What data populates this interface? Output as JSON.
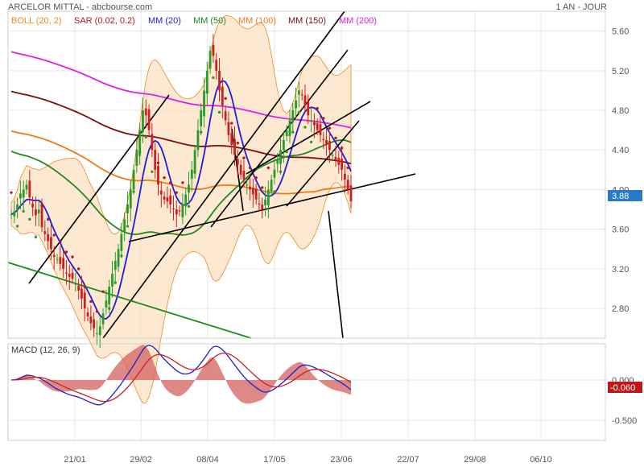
{
  "header": {
    "title": "ARCELOR MITTAL - abcbourse.com",
    "period": "1 AN - JOUR"
  },
  "colors": {
    "boll": "#f08a1c",
    "boll_fill": "#fde4c6",
    "sar": "#c0141e",
    "sar_green": "#2f9a2f",
    "mm20": "#1d1dd6",
    "mm50": "#1f8a1f",
    "mm100": "#f07a12",
    "mm150": "#7a0e0e",
    "mm200": "#e020e0",
    "up_candle": "#2a9a2a",
    "down_candle": "#cc2020",
    "macd": "#2020c8",
    "signal": "#cc2020",
    "hist": "#d46060",
    "badge_blue": "#2979c8",
    "badge_red": "#c01818",
    "trend": "#000000",
    "green_trend": "#1f8a1f"
  },
  "chart_data": [
    {
      "type": "candlestick",
      "x_ticks": [
        "21/01",
        "29/02",
        "08/04",
        "17/05",
        "23/06",
        "22/07",
        "29/08",
        "06/10"
      ],
      "y_ticks": [
        "5.60",
        "5.20",
        "4.80",
        "4.40",
        "4.00",
        "3.60",
        "3.20",
        "2.80"
      ],
      "ylim": [
        2.5,
        5.8
      ],
      "legend": [
        "BOLL (20, 2)",
        "SAR (0.02, 0.2)",
        "MM (20)",
        "MM (50)",
        "MM (100)",
        "MM (150)",
        "MM (200)"
      ],
      "last_price_label": "3.88",
      "close": [
        3.75,
        3.78,
        3.85,
        3.96,
        4.0,
        4.05,
        3.92,
        3.82,
        3.74,
        3.8,
        3.62,
        3.55,
        3.48,
        3.4,
        3.32,
        3.3,
        3.25,
        3.2,
        3.15,
        3.12,
        3.1,
        3.05,
        2.98,
        2.9,
        2.8,
        2.72,
        2.65,
        2.6,
        2.55,
        2.62,
        2.75,
        2.88,
        3.02,
        3.15,
        3.28,
        3.4,
        3.55,
        3.7,
        3.85,
        4.0,
        4.2,
        4.4,
        4.6,
        4.8,
        4.75,
        4.6,
        4.4,
        4.2,
        4.05,
        3.95,
        3.9,
        3.88,
        3.85,
        3.8,
        3.75,
        3.78,
        3.85,
        3.95,
        4.05,
        4.2,
        4.4,
        4.6,
        4.8,
        5.0,
        5.2,
        5.4,
        5.35,
        5.2,
        5.0,
        4.85,
        4.7,
        4.55,
        4.45,
        4.35,
        4.25,
        4.15,
        4.1,
        4.05,
        4.0,
        3.95,
        3.9,
        3.85,
        3.8,
        3.9,
        4.0,
        4.1,
        4.2,
        4.3,
        4.4,
        4.5,
        4.6,
        4.7,
        4.8,
        4.9,
        5.0,
        4.95,
        4.85,
        4.75,
        4.7,
        4.65,
        4.6,
        4.55,
        4.5,
        4.45,
        4.4,
        4.35,
        4.3,
        4.25,
        4.2,
        4.1,
        4.0,
        3.88
      ]
    },
    {
      "type": "line",
      "title": "MACD (12, 26, 9)",
      "y_ticks": [
        "0.000",
        "-0.500"
      ],
      "ylim": [
        -0.75,
        0.45
      ],
      "last_value_label": "-0.060"
    }
  ]
}
